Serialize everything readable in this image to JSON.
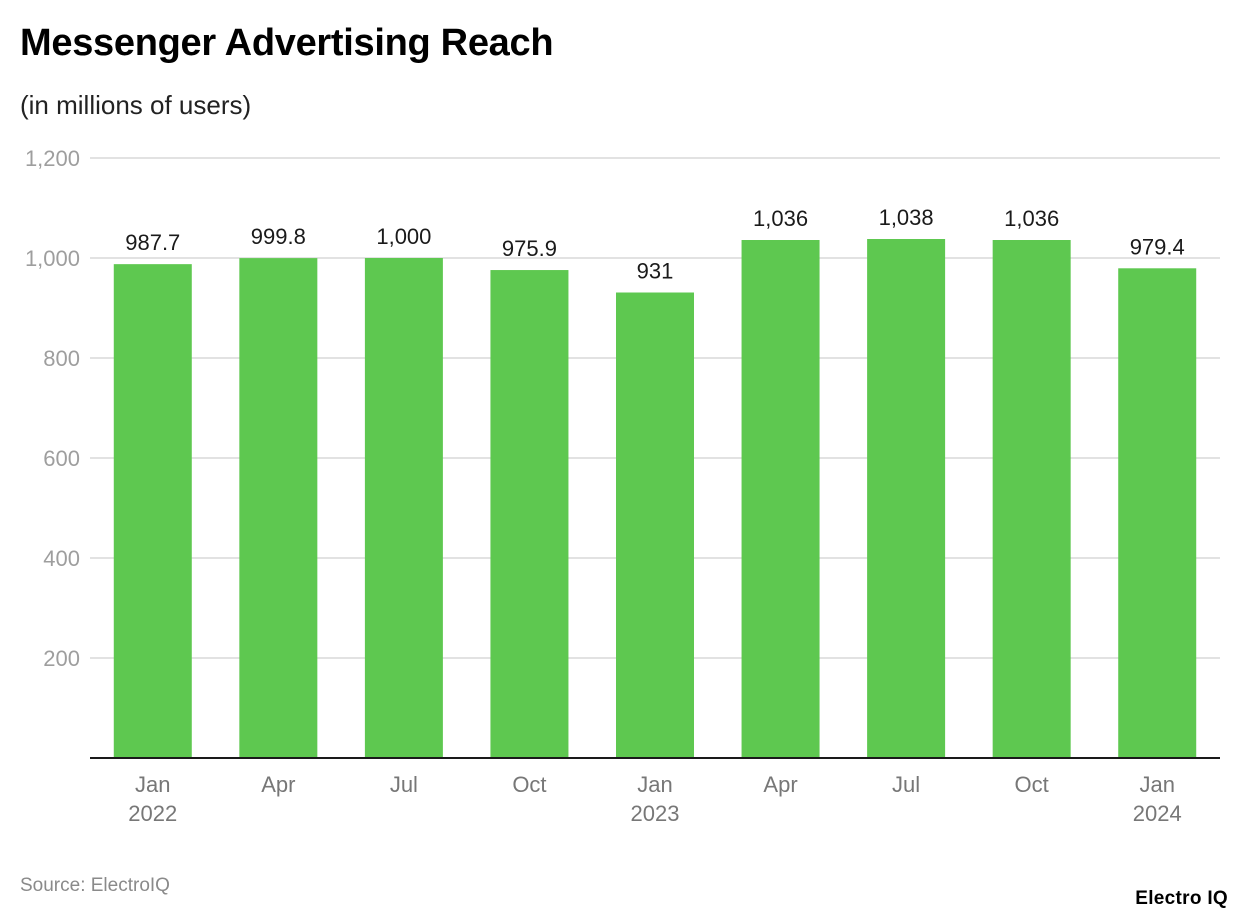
{
  "header": {
    "title": "Messenger Advertising Reach",
    "subtitle": "(in millions of users)"
  },
  "footer": {
    "source": "Source: ElectroIQ",
    "brand": "Electro IQ"
  },
  "colors": {
    "bar": "#5ec850",
    "grid": "#e2e2e2",
    "axis": "#1a1a1a",
    "tick_label": "#9e9e9e",
    "category_label": "#777777",
    "value_label": "#1a1a1a"
  },
  "chart_data": {
    "type": "bar",
    "title": "Messenger Advertising Reach",
    "subtitle": "(in millions of users)",
    "xlabel": "",
    "ylabel": "",
    "ylim": [
      0,
      1200
    ],
    "yticks": [
      0,
      200,
      400,
      600,
      800,
      1000,
      1200
    ],
    "ytick_labels": [
      "",
      "200",
      "400",
      "600",
      "800",
      "1,000",
      "1,200"
    ],
    "grid": true,
    "legend": null,
    "categories": [
      "Jan 2022",
      "Apr 2022",
      "Jul 2022",
      "Oct 2022",
      "Jan 2023",
      "Apr 2023",
      "Jul 2023",
      "Oct 2023",
      "Jan 2024"
    ],
    "category_labels": [
      [
        "Jan",
        "2022"
      ],
      [
        "Apr",
        ""
      ],
      [
        "Jul",
        ""
      ],
      [
        "Oct",
        ""
      ],
      [
        "Jan",
        "2023"
      ],
      [
        "Apr",
        ""
      ],
      [
        "Jul",
        ""
      ],
      [
        "Oct",
        ""
      ],
      [
        "Jan",
        "2024"
      ]
    ],
    "values": [
      987.7,
      999.8,
      1000,
      975.9,
      931,
      1036,
      1038,
      1036,
      979.4
    ],
    "value_labels": [
      "987.7",
      "999.8",
      "1,000",
      "975.9",
      "931",
      "1,036",
      "1,038",
      "1,036",
      "979.4"
    ],
    "source": "Source: ElectroIQ"
  }
}
